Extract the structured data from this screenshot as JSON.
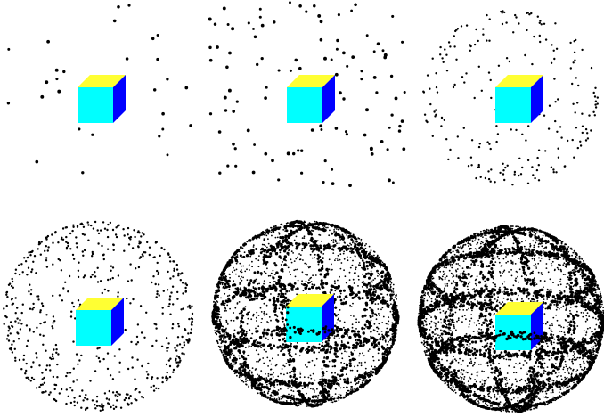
{
  "figure": {
    "panels": [
      {
        "id": "panel-1",
        "points": 28,
        "distribution": "uniform-random",
        "rings": 0
      },
      {
        "id": "panel-2",
        "points": 110,
        "distribution": "uniform-random",
        "rings": 0
      },
      {
        "id": "panel-3",
        "points": 230,
        "distribution": "spherical-shell",
        "rings": 0
      },
      {
        "id": "panel-4",
        "points": 620,
        "distribution": "spherical-shell",
        "rings": 0
      },
      {
        "id": "panel-5",
        "points": 3600,
        "distribution": "spherical-shell-banded",
        "rings": 6
      },
      {
        "id": "panel-6",
        "points": 5200,
        "distribution": "spherical-shell-banded",
        "rings": 6
      }
    ],
    "cube_colors": {
      "top": "#ffff33",
      "front": "#00ffff",
      "side": "#0000ff"
    },
    "point_color": "#000000",
    "background": "#ffffff"
  }
}
